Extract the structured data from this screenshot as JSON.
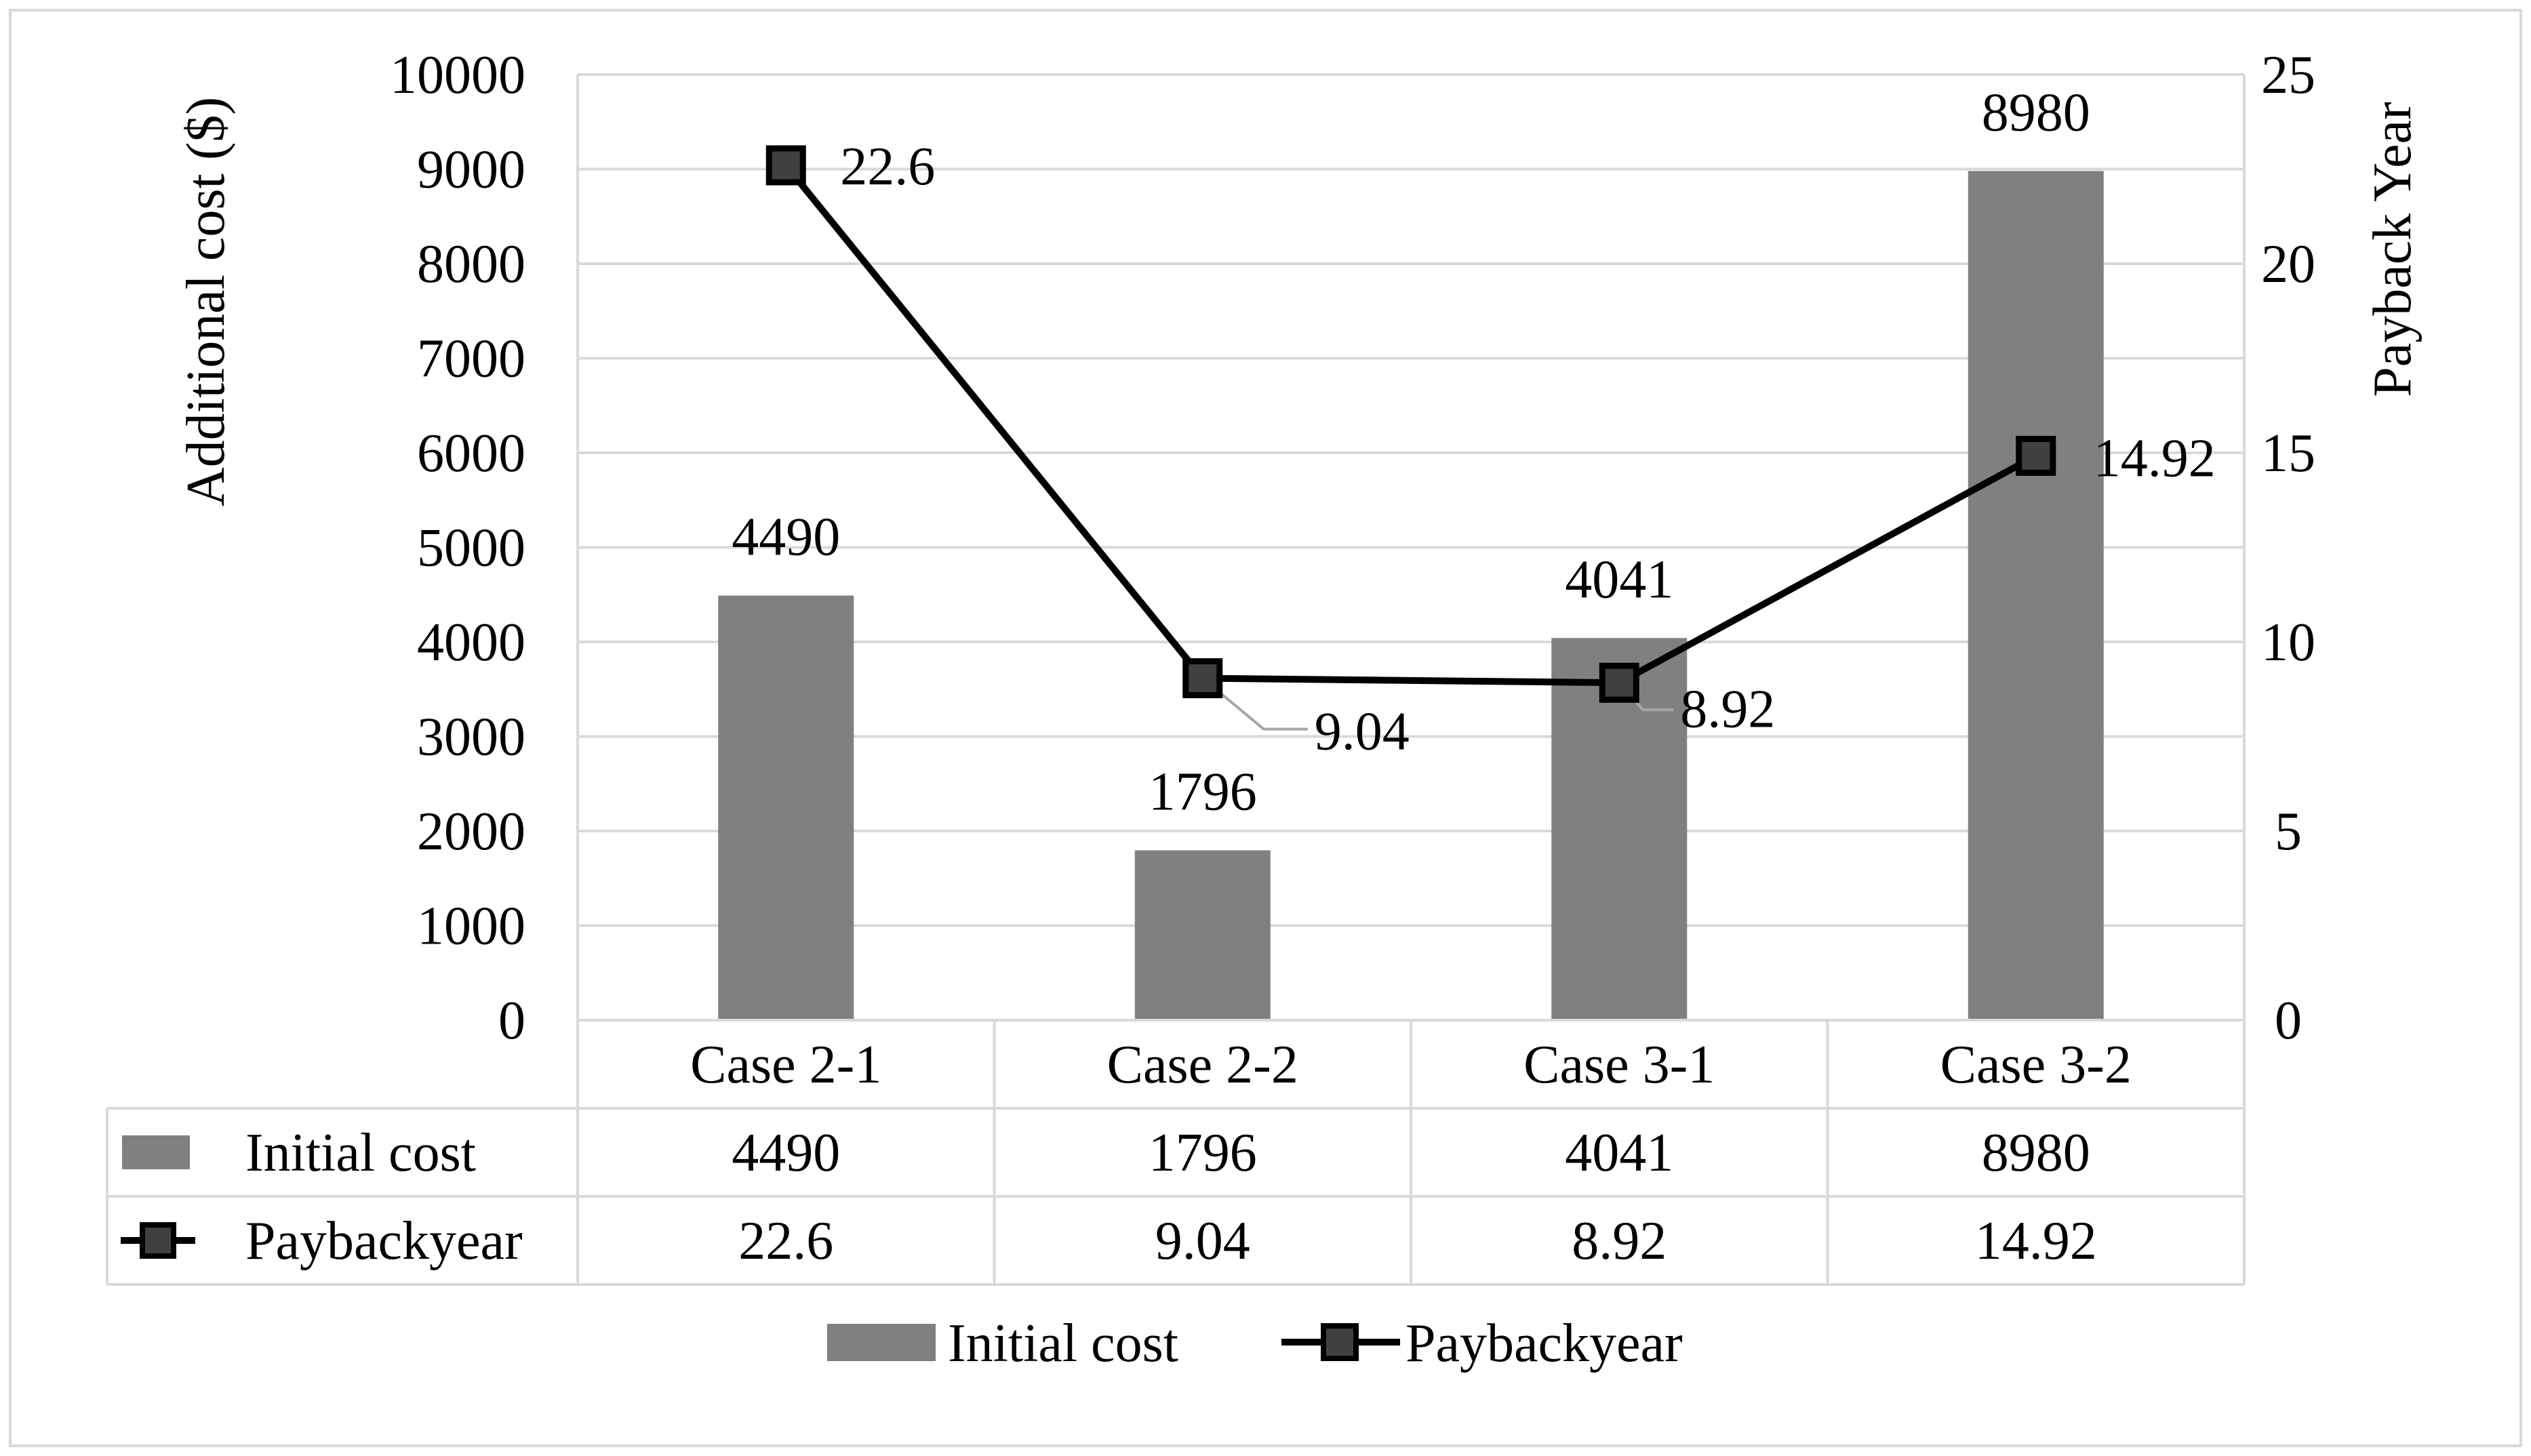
{
  "chart_data": {
    "type": "bar",
    "categories": [
      "Case 2-1",
      "Case 2-2",
      "Case 3-1",
      "Case 3-2"
    ],
    "series": [
      {
        "name": "Initial cost",
        "type": "bar",
        "axis": "left",
        "values": [
          4490,
          1796,
          4041,
          8980
        ],
        "labels": [
          "4490",
          "1796",
          "4041",
          "8980"
        ],
        "color": "#808080"
      },
      {
        "name": "Paybackyear",
        "type": "line",
        "axis": "right",
        "values": [
          22.6,
          9.04,
          8.92,
          14.92
        ],
        "labels": [
          "22.6",
          "9.04",
          "8.92",
          "14.92"
        ],
        "color": "#000000",
        "marker": "square",
        "marker_fill": "#404040"
      }
    ],
    "ylabel": "Additional cost ($)",
    "y2label": "Payback Year",
    "ylim": [
      0,
      10000
    ],
    "y2lim": [
      0,
      25
    ],
    "yticks": [
      "0",
      "1000",
      "2000",
      "3000",
      "4000",
      "5000",
      "6000",
      "7000",
      "8000",
      "9000",
      "10000"
    ],
    "y2ticks": [
      "0",
      "5",
      "10",
      "15",
      "20",
      "25"
    ],
    "grid": true,
    "data_table": true,
    "legend_position": "bottom"
  }
}
